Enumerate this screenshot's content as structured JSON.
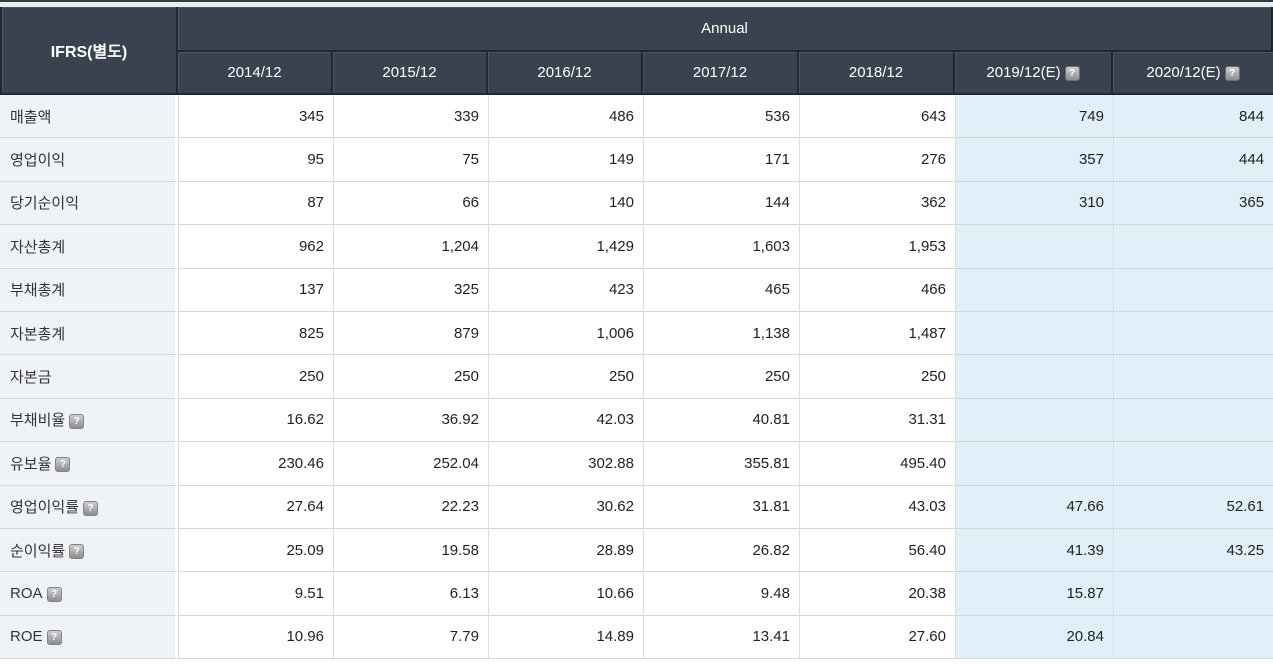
{
  "colors": {
    "header_background": "#39434f",
    "header_text": "#ffffff",
    "row_label_background": "#eff3f8",
    "estimate_column_background": "#e1f0f8",
    "grid_line": "#d6d6d6",
    "body_text": "#222222"
  },
  "chart_data": {
    "type": "table",
    "corner_label": "IFRS(별도)",
    "group_header": "Annual",
    "help_icon_glyph": "?",
    "columns": [
      {
        "label": "2014/12",
        "estimate": false,
        "help": false
      },
      {
        "label": "2015/12",
        "estimate": false,
        "help": false
      },
      {
        "label": "2016/12",
        "estimate": false,
        "help": false
      },
      {
        "label": "2017/12",
        "estimate": false,
        "help": false
      },
      {
        "label": "2018/12",
        "estimate": false,
        "help": false
      },
      {
        "label": "2019/12(E)",
        "estimate": true,
        "help": true
      },
      {
        "label": "2020/12(E)",
        "estimate": true,
        "help": true
      }
    ],
    "rows": [
      {
        "label": "매출액",
        "help": false,
        "values": [
          "345",
          "339",
          "486",
          "536",
          "643",
          "749",
          "844"
        ]
      },
      {
        "label": "영업이익",
        "help": false,
        "values": [
          "95",
          "75",
          "149",
          "171",
          "276",
          "357",
          "444"
        ]
      },
      {
        "label": "당기순이익",
        "help": false,
        "values": [
          "87",
          "66",
          "140",
          "144",
          "362",
          "310",
          "365"
        ]
      },
      {
        "label": "자산총계",
        "help": false,
        "values": [
          "962",
          "1,204",
          "1,429",
          "1,603",
          "1,953",
          "",
          ""
        ]
      },
      {
        "label": "부채총계",
        "help": false,
        "values": [
          "137",
          "325",
          "423",
          "465",
          "466",
          "",
          ""
        ]
      },
      {
        "label": "자본총계",
        "help": false,
        "values": [
          "825",
          "879",
          "1,006",
          "1,138",
          "1,487",
          "",
          ""
        ]
      },
      {
        "label": "자본금",
        "help": false,
        "values": [
          "250",
          "250",
          "250",
          "250",
          "250",
          "",
          ""
        ]
      },
      {
        "label": "부채비율",
        "help": true,
        "values": [
          "16.62",
          "36.92",
          "42.03",
          "40.81",
          "31.31",
          "",
          ""
        ]
      },
      {
        "label": "유보율",
        "help": true,
        "values": [
          "230.46",
          "252.04",
          "302.88",
          "355.81",
          "495.40",
          "",
          ""
        ]
      },
      {
        "label": "영업이익률",
        "help": true,
        "values": [
          "27.64",
          "22.23",
          "30.62",
          "31.81",
          "43.03",
          "47.66",
          "52.61"
        ]
      },
      {
        "label": "순이익률",
        "help": true,
        "values": [
          "25.09",
          "19.58",
          "28.89",
          "26.82",
          "56.40",
          "41.39",
          "43.25"
        ]
      },
      {
        "label": "ROA",
        "help": true,
        "values": [
          "9.51",
          "6.13",
          "10.66",
          "9.48",
          "20.38",
          "15.87",
          ""
        ]
      },
      {
        "label": "ROE",
        "help": true,
        "values": [
          "10.96",
          "7.79",
          "14.89",
          "13.41",
          "27.60",
          "20.84",
          ""
        ]
      }
    ]
  }
}
